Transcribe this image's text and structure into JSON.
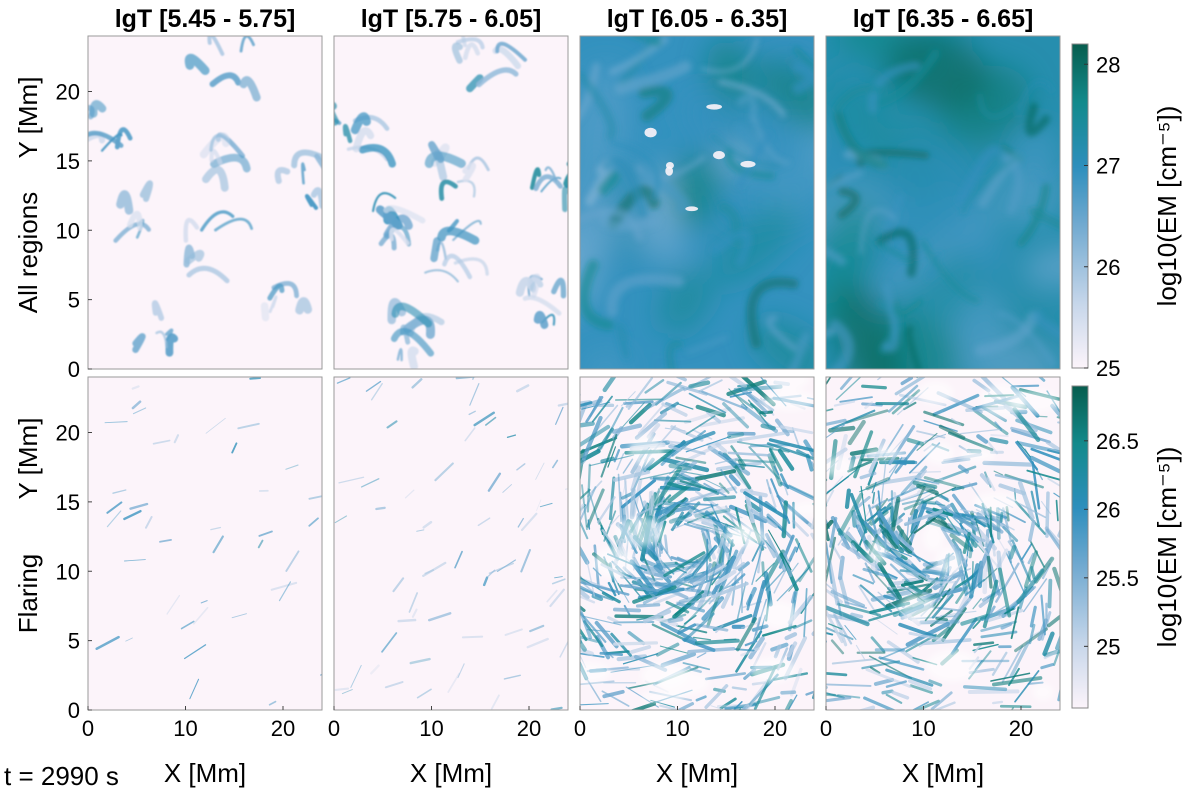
{
  "timestamp": "t = 2990 s",
  "chart_data": {
    "type": "heatmap",
    "columns": [
      "lgT [5.45 - 5.75]",
      "lgT [5.75 - 6.05]",
      "lgT [6.05 - 6.35]",
      "lgT [6.35 - 6.65]"
    ],
    "rows": [
      "All regions",
      "Flaring"
    ],
    "xlabel": "X [Mm]",
    "ylabel": "Y [Mm]",
    "xlim": [
      0,
      24
    ],
    "ylim": [
      0,
      24
    ],
    "xticks": [
      0,
      10,
      20
    ],
    "yticks": [
      0,
      5,
      10,
      15,
      20
    ],
    "colormap": [
      "#fcf4fa",
      "#c6d6ea",
      "#6ea8cf",
      "#2e8fbd",
      "#138a8c",
      "#075d4e"
    ],
    "colorbars": [
      {
        "row": "All regions",
        "label": "log10(EM [cm⁻⁵])",
        "range": [
          25,
          28.2
        ],
        "ticks": [
          25,
          26,
          27,
          28
        ]
      },
      {
        "row": "Flaring",
        "label": "log10(EM [cm⁻⁵])",
        "range": [
          24.55,
          26.9
        ],
        "ticks": [
          25,
          25.5,
          26,
          26.5
        ]
      }
    ],
    "panels": [
      {
        "row": 0,
        "col": 0,
        "mean_level": 0.06,
        "coverage": 0.12,
        "style": "sparse-loops"
      },
      {
        "row": 0,
        "col": 1,
        "mean_level": 0.12,
        "coverage": 0.28,
        "style": "sparse-loops"
      },
      {
        "row": 0,
        "col": 2,
        "mean_level": 0.58,
        "coverage": 1.0,
        "style": "diffuse-filled"
      },
      {
        "row": 0,
        "col": 3,
        "mean_level": 0.66,
        "coverage": 1.0,
        "style": "diffuse-filled"
      },
      {
        "row": 1,
        "col": 0,
        "mean_level": 0.03,
        "coverage": 0.04,
        "style": "sparse-strands"
      },
      {
        "row": 1,
        "col": 1,
        "mean_level": 0.06,
        "coverage": 0.1,
        "style": "sparse-strands"
      },
      {
        "row": 1,
        "col": 2,
        "mean_level": 0.42,
        "coverage": 0.65,
        "style": "dense-strands"
      },
      {
        "row": 1,
        "col": 3,
        "mean_level": 0.48,
        "coverage": 0.5,
        "style": "dense-strands"
      }
    ]
  }
}
